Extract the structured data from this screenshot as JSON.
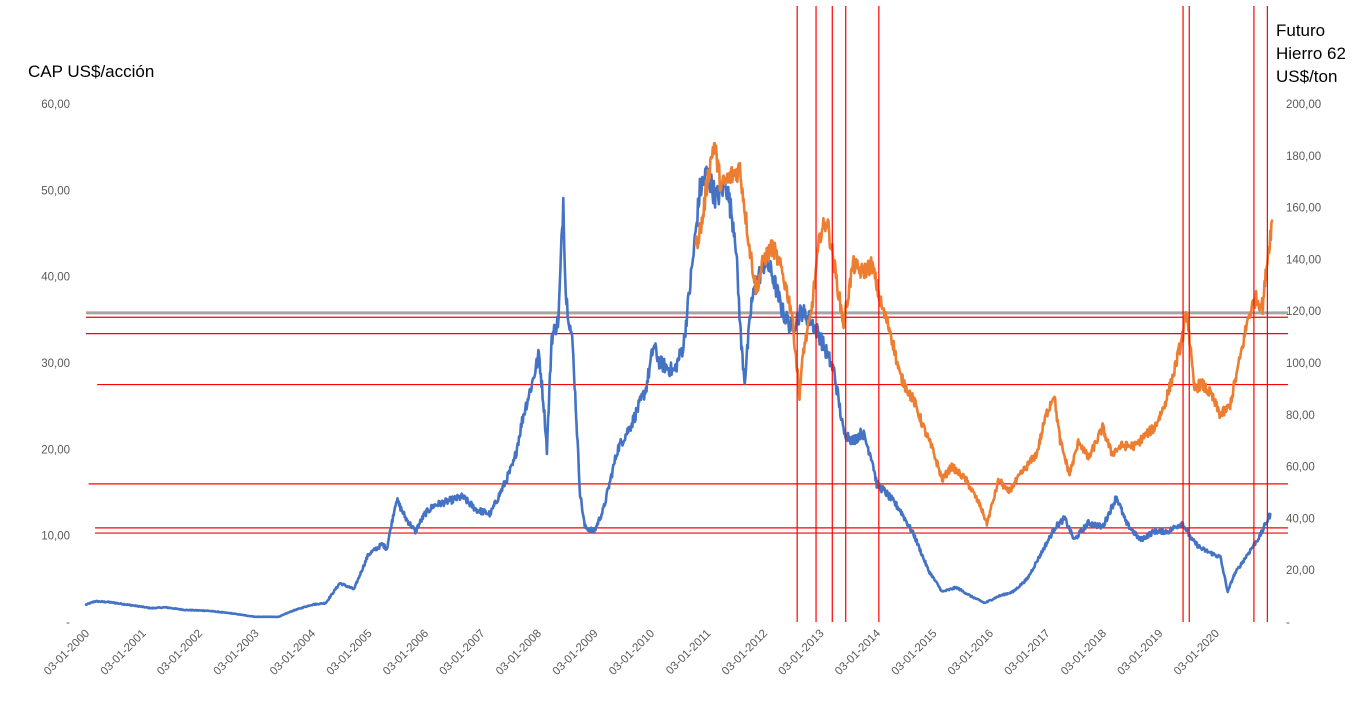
{
  "chart_data": {
    "type": "line",
    "title": "",
    "y_left": {
      "label": "CAP US$/acción",
      "ylim": [
        0,
        60
      ],
      "ticks": [
        "-",
        "10,00",
        "20,00",
        "30,00",
        "40,00",
        "50,00",
        "60,00"
      ]
    },
    "y_right": {
      "label_lines": [
        "Futuro",
        "Hierro 62",
        "US$/ton"
      ],
      "ylim": [
        0,
        200
      ],
      "ticks": [
        "-",
        "20,00",
        "40,00",
        "60,00",
        "80,00",
        "100,00",
        "120,00",
        "140,00",
        "160,00",
        "180,00",
        "200,00"
      ]
    },
    "x_range": [
      "2000-01-03",
      "2020-12-31"
    ],
    "x_ticks": [
      "03-01-2000",
      "03-01-2001",
      "03-01-2002",
      "03-01-2003",
      "03-01-2004",
      "03-01-2005",
      "03-01-2006",
      "03-01-2007",
      "03-01-2008",
      "03-01-2009",
      "03-01-2010",
      "03-01-2011",
      "03-01-2012",
      "03-01-2013",
      "03-01-2014",
      "03-01-2015",
      "03-01-2016",
      "03-01-2017",
      "03-01-2018",
      "03-01-2019",
      "03-01-2020"
    ],
    "grid": false,
    "legend": "none",
    "colors": {
      "cap": "#4472C4",
      "iron": "#ED7D31",
      "ref": "#FF0000",
      "gray": "#A5A5A5"
    },
    "series": [
      {
        "axis": "left",
        "color": "#4472C4",
        "points": [
          [
            "2000-01-03",
            2.0
          ],
          [
            "2000-03-01",
            2.4
          ],
          [
            "2000-06-01",
            2.3
          ],
          [
            "2000-10-01",
            2.0
          ],
          [
            "2001-03-01",
            1.6
          ],
          [
            "2001-06-01",
            1.7
          ],
          [
            "2001-10-01",
            1.4
          ],
          [
            "2002-03-01",
            1.3
          ],
          [
            "2002-08-01",
            1.0
          ],
          [
            "2003-01-01",
            0.6
          ],
          [
            "2003-06-01",
            0.6
          ],
          [
            "2003-09-01",
            1.3
          ],
          [
            "2004-01-01",
            2.0
          ],
          [
            "2004-04-01",
            2.2
          ],
          [
            "2004-07-01",
            4.5
          ],
          [
            "2004-10-01",
            3.8
          ],
          [
            "2005-01-01",
            7.8
          ],
          [
            "2005-04-01",
            9.0
          ],
          [
            "2005-05-01",
            8.5
          ],
          [
            "2005-07-01",
            14.2
          ],
          [
            "2005-09-01",
            12.0
          ],
          [
            "2005-11-01",
            10.5
          ],
          [
            "2006-01-01",
            12.5
          ],
          [
            "2006-03-01",
            13.5
          ],
          [
            "2006-06-01",
            14.0
          ],
          [
            "2006-09-01",
            14.5
          ],
          [
            "2006-12-01",
            13.0
          ],
          [
            "2007-03-01",
            12.5
          ],
          [
            "2007-06-01",
            16.0
          ],
          [
            "2007-08-01",
            18.5
          ],
          [
            "2007-10-01",
            24.0
          ],
          [
            "2007-12-01",
            28.0
          ],
          [
            "2008-01-10",
            31.0
          ],
          [
            "2008-02-10",
            25.0
          ],
          [
            "2008-03-01",
            20.0
          ],
          [
            "2008-04-01",
            33.0
          ],
          [
            "2008-05-15",
            35.0
          ],
          [
            "2008-06-15",
            49.0
          ],
          [
            "2008-07-01",
            38.0
          ],
          [
            "2008-08-15",
            32.0
          ],
          [
            "2008-10-01",
            15.0
          ],
          [
            "2008-11-01",
            11.0
          ],
          [
            "2009-01-01",
            10.5
          ],
          [
            "2009-03-01",
            13.0
          ],
          [
            "2009-06-01",
            20.0
          ],
          [
            "2009-09-01",
            23.0
          ],
          [
            "2009-12-01",
            27.0
          ],
          [
            "2010-01-20",
            32.0
          ],
          [
            "2010-03-01",
            30.0
          ],
          [
            "2010-06-01",
            29.0
          ],
          [
            "2010-08-01",
            32.0
          ],
          [
            "2010-10-01",
            42.0
          ],
          [
            "2010-11-15",
            50.0
          ],
          [
            "2011-01-01",
            52.0
          ],
          [
            "2011-03-01",
            49.0
          ],
          [
            "2011-05-01",
            51.0
          ],
          [
            "2011-07-01",
            45.0
          ],
          [
            "2011-08-10",
            32.0
          ],
          [
            "2011-09-01",
            28.0
          ],
          [
            "2011-10-15",
            37.0
          ],
          [
            "2011-12-01",
            40.0
          ],
          [
            "2012-01-15",
            42.0
          ],
          [
            "2012-03-01",
            40.0
          ],
          [
            "2012-05-01",
            36.0
          ],
          [
            "2012-07-01",
            34.0
          ],
          [
            "2012-09-01",
            36.0
          ],
          [
            "2012-11-01",
            35.0
          ],
          [
            "2013-01-01",
            33.0
          ],
          [
            "2013-04-01",
            29.0
          ],
          [
            "2013-06-01",
            22.0
          ],
          [
            "2013-08-01",
            21.0
          ],
          [
            "2013-10-01",
            22.0
          ],
          [
            "2013-12-01",
            19.0
          ],
          [
            "2014-01-01",
            16.0
          ],
          [
            "2014-03-01",
            15.0
          ],
          [
            "2014-06-01",
            13.0
          ],
          [
            "2014-09-01",
            10.0
          ],
          [
            "2014-12-01",
            6.0
          ],
          [
            "2015-03-01",
            3.5
          ],
          [
            "2015-06-01",
            4.0
          ],
          [
            "2015-09-01",
            3.0
          ],
          [
            "2015-12-01",
            2.2
          ],
          [
            "2016-03-01",
            3.0
          ],
          [
            "2016-06-01",
            3.5
          ],
          [
            "2016-09-01",
            5.0
          ],
          [
            "2016-12-01",
            8.0
          ],
          [
            "2017-03-01",
            11.0
          ],
          [
            "2017-05-01",
            12.0
          ],
          [
            "2017-07-01",
            9.5
          ],
          [
            "2017-10-01",
            11.5
          ],
          [
            "2018-01-01",
            11.0
          ],
          [
            "2018-04-01",
            14.5
          ],
          [
            "2018-06-01",
            11.5
          ],
          [
            "2018-09-01",
            9.5
          ],
          [
            "2018-12-01",
            10.5
          ],
          [
            "2019-03-01",
            10.5
          ],
          [
            "2019-06-01",
            11.5
          ],
          [
            "2019-08-01",
            9.5
          ],
          [
            "2019-10-01",
            8.5
          ],
          [
            "2019-12-01",
            8.0
          ],
          [
            "2020-02-01",
            7.5
          ],
          [
            "2020-03-20",
            3.5
          ],
          [
            "2020-05-01",
            5.5
          ],
          [
            "2020-08-01",
            8.0
          ],
          [
            "2020-10-15",
            10.0
          ],
          [
            "2020-12-20",
            12.5
          ]
        ]
      },
      {
        "axis": "right",
        "color": "#ED7D31",
        "points": [
          [
            "2010-10-20",
            145.0
          ],
          [
            "2010-12-01",
            155.0
          ],
          [
            "2011-01-01",
            170.0
          ],
          [
            "2011-02-15",
            185.0
          ],
          [
            "2011-04-01",
            168.0
          ],
          [
            "2011-06-01",
            172.0
          ],
          [
            "2011-08-01",
            175.0
          ],
          [
            "2011-10-01",
            145.0
          ],
          [
            "2011-11-15",
            128.0
          ],
          [
            "2012-01-01",
            140.0
          ],
          [
            "2012-03-01",
            145.0
          ],
          [
            "2012-05-01",
            135.0
          ],
          [
            "2012-07-01",
            120.0
          ],
          [
            "2012-08-20",
            88.0
          ],
          [
            "2012-09-15",
            105.0
          ],
          [
            "2012-11-01",
            118.0
          ],
          [
            "2013-01-01",
            150.0
          ],
          [
            "2013-02-15",
            155.0
          ],
          [
            "2013-04-01",
            138.0
          ],
          [
            "2013-06-01",
            115.0
          ],
          [
            "2013-08-01",
            138.0
          ],
          [
            "2013-10-01",
            135.0
          ],
          [
            "2013-12-01",
            138.0
          ],
          [
            "2014-02-01",
            122.0
          ],
          [
            "2014-04-01",
            112.0
          ],
          [
            "2014-06-01",
            95.0
          ],
          [
            "2014-09-01",
            85.0
          ],
          [
            "2014-11-01",
            75.0
          ],
          [
            "2015-01-01",
            66.0
          ],
          [
            "2015-03-01",
            55.0
          ],
          [
            "2015-05-01",
            60.0
          ],
          [
            "2015-08-01",
            55.0
          ],
          [
            "2015-11-01",
            45.0
          ],
          [
            "2015-12-15",
            38.0
          ],
          [
            "2016-03-01",
            55.0
          ],
          [
            "2016-05-01",
            50.0
          ],
          [
            "2016-08-01",
            58.0
          ],
          [
            "2016-11-01",
            65.0
          ],
          [
            "2017-01-01",
            80.0
          ],
          [
            "2017-02-20",
            88.0
          ],
          [
            "2017-04-01",
            70.0
          ],
          [
            "2017-06-01",
            57.0
          ],
          [
            "2017-08-01",
            70.0
          ],
          [
            "2017-10-01",
            63.0
          ],
          [
            "2018-01-01",
            75.0
          ],
          [
            "2018-03-01",
            65.0
          ],
          [
            "2018-05-01",
            68.0
          ],
          [
            "2018-08-01",
            68.0
          ],
          [
            "2018-10-01",
            72.0
          ],
          [
            "2018-12-01",
            75.0
          ],
          [
            "2019-02-01",
            83.0
          ],
          [
            "2019-04-01",
            95.0
          ],
          [
            "2019-06-01",
            110.0
          ],
          [
            "2019-07-01",
            120.0
          ],
          [
            "2019-08-15",
            90.0
          ],
          [
            "2019-10-01",
            92.0
          ],
          [
            "2019-12-01",
            88.0
          ],
          [
            "2020-02-01",
            80.0
          ],
          [
            "2020-04-01",
            83.0
          ],
          [
            "2020-06-01",
            100.0
          ],
          [
            "2020-08-01",
            118.0
          ],
          [
            "2020-09-15",
            125.0
          ],
          [
            "2020-11-01",
            122.0
          ],
          [
            "2020-12-01",
            140.0
          ],
          [
            "2020-12-31",
            155.0
          ]
        ]
      }
    ],
    "reference_lines": {
      "horizontal": [
        {
          "axis": "left",
          "value": 35.8,
          "color": "#A5A5A5",
          "from": "2000-01-03"
        },
        {
          "axis": "left",
          "value": 35.3,
          "color": "#FF0000",
          "from": "2000-01-03"
        },
        {
          "axis": "left",
          "value": 33.4,
          "color": "#FF0000",
          "from": "2000-01-03"
        },
        {
          "axis": "left",
          "value": 27.5,
          "color": "#FF0000",
          "from": "2000-03-15"
        },
        {
          "axis": "left",
          "value": 16.0,
          "color": "#FF0000",
          "from": "2000-01-20"
        },
        {
          "axis": "left",
          "value": 10.9,
          "color": "#FF0000",
          "from": "2000-03-01"
        },
        {
          "axis": "left",
          "value": 10.3,
          "color": "#FF0000",
          "from": "2000-03-01"
        }
      ],
      "vertical": [
        "2012-08-05",
        "2012-12-05",
        "2013-03-20",
        "2013-06-15",
        "2014-01-15",
        "2019-06-05",
        "2019-07-15",
        "2020-09-05",
        "2020-12-01"
      ]
    }
  }
}
